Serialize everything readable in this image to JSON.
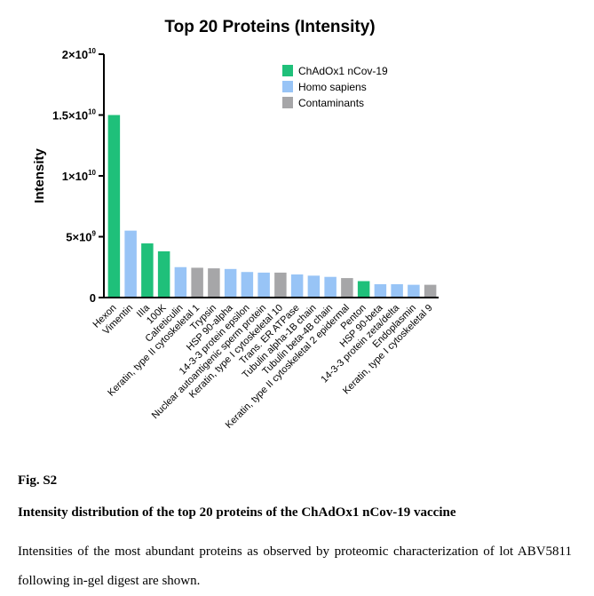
{
  "chart_data": {
    "type": "bar",
    "title": "Top 20 Proteins (Intensity)",
    "ylabel": "Intensity",
    "xlabel": "",
    "ylim": [
      0,
      20000000000
    ],
    "yticks": [
      {
        "value": 0,
        "mantissa": "0",
        "exponent": ""
      },
      {
        "value": 5000000000,
        "mantissa": "5×10",
        "exponent": "9"
      },
      {
        "value": 10000000000,
        "mantissa": "1×10",
        "exponent": "10"
      },
      {
        "value": 15000000000,
        "mantissa": "1.5×10",
        "exponent": "10"
      },
      {
        "value": 20000000000,
        "mantissa": "2×10",
        "exponent": "10"
      }
    ],
    "legend_position": "top-right",
    "groups": [
      {
        "name": "ChAdOx1 nCov-19",
        "color": "#1fc07a"
      },
      {
        "name": "Homo sapiens",
        "color": "#98c4f6"
      },
      {
        "name": "Contaminants",
        "color": "#a6a6a8"
      }
    ],
    "bars": [
      {
        "category": "Hexon",
        "value": 15000000000,
        "group": 0
      },
      {
        "category": "Vimentin",
        "value": 5500000000,
        "group": 1
      },
      {
        "category": "IIIa",
        "value": 4450000000,
        "group": 0
      },
      {
        "category": "100K",
        "value": 3800000000,
        "group": 0
      },
      {
        "category": "Calreticulin",
        "value": 2500000000,
        "group": 1
      },
      {
        "category": "Keratin, type II cytoskeletal 1",
        "value": 2450000000,
        "group": 2
      },
      {
        "category": "Trypsin",
        "value": 2400000000,
        "group": 2
      },
      {
        "category": "HSP 90-alpha",
        "value": 2350000000,
        "group": 1
      },
      {
        "category": "14-3-3 protein epsilon",
        "value": 2100000000,
        "group": 1
      },
      {
        "category": "Nuclear autoantigenic sperm protein",
        "value": 2050000000,
        "group": 1
      },
      {
        "category": "Keratin, type I cytoskeletal 10",
        "value": 2050000000,
        "group": 2
      },
      {
        "category": "Trans. ER ATPase",
        "value": 1900000000,
        "group": 1
      },
      {
        "category": "Tubulin alpha-1B chain",
        "value": 1800000000,
        "group": 1
      },
      {
        "category": "Tubulin beta-4B chain",
        "value": 1700000000,
        "group": 1
      },
      {
        "category": "Keratin, type II cytoskeletal 2 epidermal",
        "value": 1600000000,
        "group": 2
      },
      {
        "category": "Penton",
        "value": 1350000000,
        "group": 0
      },
      {
        "category": "HSP 90-beta",
        "value": 1100000000,
        "group": 1
      },
      {
        "category": "14-3-3 protein zeta/delta",
        "value": 1100000000,
        "group": 1
      },
      {
        "category": "Endoplasmin",
        "value": 1050000000,
        "group": 1
      },
      {
        "category": "Keratin, type I cytoskeletal 9",
        "value": 1050000000,
        "group": 2
      }
    ]
  },
  "caption": {
    "label": "Fig. S2",
    "title": "Intensity distribution of the top 20 proteins of the ChAdOx1 nCov-19 vaccine",
    "description": "Intensities of the most abundant proteins as observed by proteomic characterization of lot ABV5811 following in-gel digest are shown."
  }
}
